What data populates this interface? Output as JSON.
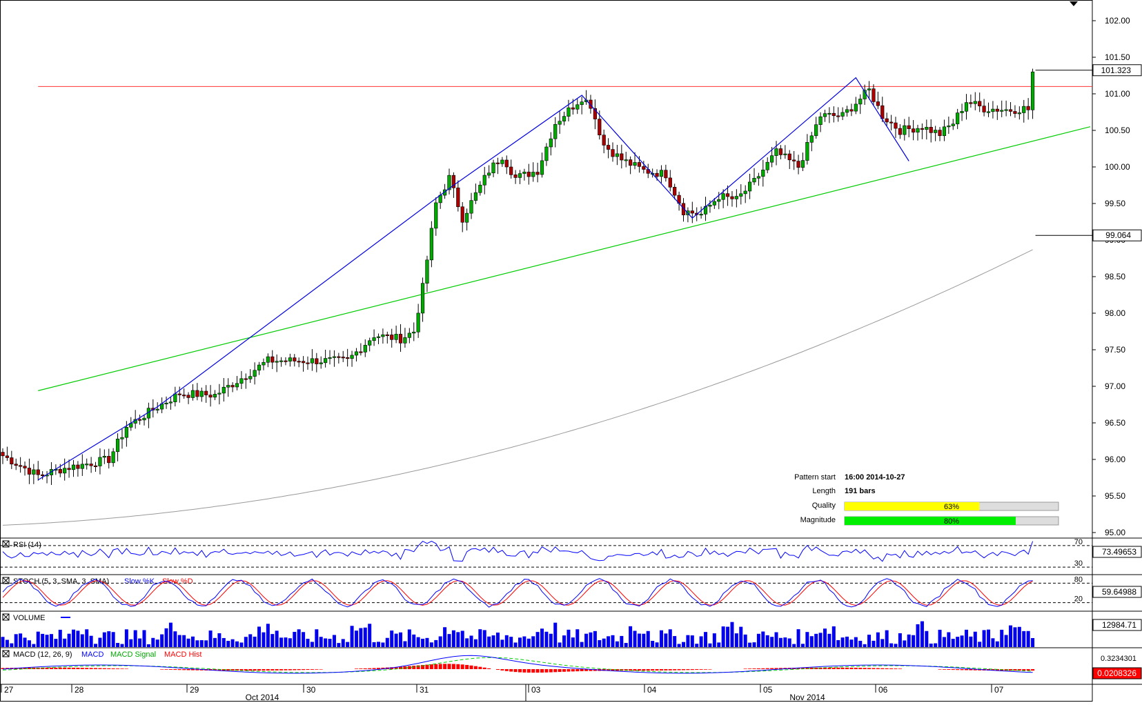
{
  "chart_data": {
    "type": "candlestick",
    "y_ticks": [
      "102.00",
      "101.50",
      "101.00",
      "100.50",
      "100.00",
      "99.50",
      "99.00",
      "98.50",
      "98.00",
      "97.50",
      "97.00",
      "96.50",
      "96.00",
      "95.50",
      "95.00"
    ],
    "ylim": [
      94.95,
      102.25
    ],
    "current_price_label": "101.323",
    "ma_label": "99.064",
    "resistance_level": 101.1,
    "support_line": {
      "start": 96.94,
      "end": 100.55
    },
    "pattern_points": [
      95.72,
      96.72,
      99.75,
      100.98,
      99.3,
      101.22,
      100.08
    ],
    "x_day_labels": [
      "27",
      "28",
      "29",
      "30",
      "31",
      "03",
      "04",
      "05",
      "06",
      "07"
    ],
    "x_month_labels": [
      "Oct 2014",
      "Nov 2014"
    ],
    "anchors": [
      [
        0,
        96.05
      ],
      [
        8,
        95.78
      ],
      [
        14,
        95.88
      ],
      [
        24,
        96.0
      ],
      [
        28,
        96.45
      ],
      [
        35,
        96.72
      ],
      [
        40,
        96.9
      ],
      [
        48,
        96.88
      ],
      [
        55,
        97.15
      ],
      [
        60,
        97.35
      ],
      [
        70,
        97.35
      ],
      [
        78,
        97.35
      ],
      [
        84,
        97.7
      ],
      [
        90,
        97.65
      ],
      [
        93,
        97.75
      ],
      [
        95,
        98.35
      ],
      [
        98,
        99.5
      ],
      [
        101,
        99.85
      ],
      [
        104,
        99.3
      ],
      [
        110,
        99.95
      ],
      [
        113,
        100.15
      ],
      [
        116,
        99.85
      ],
      [
        121,
        99.95
      ],
      [
        125,
        100.6
      ],
      [
        131,
        100.95
      ],
      [
        133,
        100.85
      ],
      [
        136,
        100.3
      ],
      [
        140,
        100.1
      ],
      [
        145,
        99.95
      ],
      [
        150,
        99.9
      ],
      [
        154,
        99.4
      ],
      [
        158,
        99.35
      ],
      [
        162,
        99.6
      ],
      [
        166,
        99.55
      ],
      [
        170,
        99.8
      ],
      [
        175,
        100.2
      ],
      [
        180,
        100.0
      ],
      [
        185,
        100.7
      ],
      [
        190,
        100.7
      ],
      [
        196,
        101.05
      ],
      [
        199,
        100.7
      ],
      [
        203,
        100.5
      ],
      [
        208,
        100.55
      ],
      [
        212,
        100.45
      ],
      [
        215,
        100.6
      ],
      [
        218,
        100.9
      ],
      [
        222,
        100.8
      ],
      [
        228,
        100.78
      ],
      [
        231,
        100.8
      ],
      [
        233,
        101.3
      ]
    ],
    "rsi": {
      "label": "RSI (14)",
      "period": 14,
      "value_label": "73.49653",
      "levels": [
        "70",
        "30"
      ]
    },
    "stoch": {
      "label": "STOCH (5, 3, SMA, 3, SMA)",
      "series_labels": [
        "Slow %K",
        "Slow %D"
      ],
      "value_label": "59.64988",
      "levels": [
        "80",
        "20"
      ]
    },
    "volume": {
      "label": "VOLUME",
      "value_label": "12984.71"
    },
    "macd": {
      "label": "MACD (12, 26, 9)",
      "series_labels": [
        "MACD",
        "MACD Signal",
        "MACD Hist"
      ],
      "value_labels": [
        "0.3234301",
        "0.0208326"
      ]
    }
  },
  "pattern_info": {
    "start_label": "Pattern start",
    "start_value": "16:00 2014-10-27",
    "length_label": "Length",
    "length_value": "191 bars",
    "quality_label": "Quality",
    "quality_pct": 63,
    "quality_text": "63%",
    "magnitude_label": "Magnitude",
    "magnitude_pct": 80,
    "magnitude_text": "80%"
  },
  "colors": {
    "bull": "#00aa00",
    "bear": "#aa0000",
    "pattern": "#0000dd",
    "support": "#00cc00",
    "resistance": "#ff3333",
    "ma": "#999999",
    "volume": "#0000ee",
    "quality_bar": "#ffff00",
    "magnitude_bar": "#00ee00"
  }
}
